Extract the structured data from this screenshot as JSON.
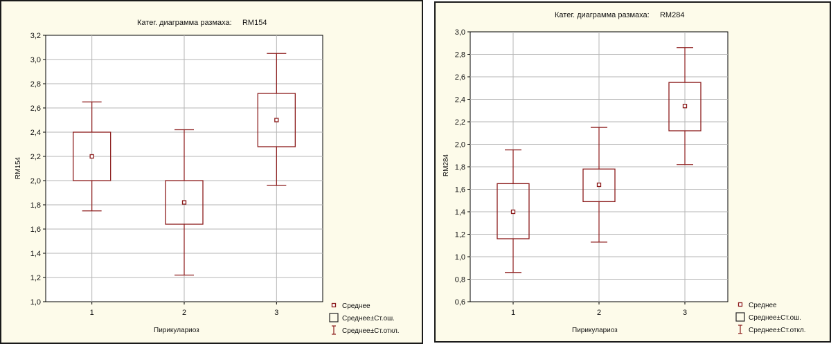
{
  "chart_data": [
    {
      "type": "box",
      "title": "Катег. диаграмма размаха:     RM154",
      "xlabel": "Пирикулариоз",
      "ylabel": "RM154",
      "categories": [
        "1",
        "2",
        "3"
      ],
      "ylim": [
        1.0,
        3.2
      ],
      "yticks": [
        1.0,
        1.2,
        1.4,
        1.6,
        1.8,
        2.0,
        2.2,
        2.4,
        2.6,
        2.8,
        3.0,
        3.2
      ],
      "ytick_labels": [
        "1,0",
        "1,2",
        "1,4",
        "1,6",
        "1,8",
        "2,0",
        "2,2",
        "2,4",
        "2,6",
        "2,8",
        "3,0",
        "3,2"
      ],
      "mean": [
        2.2,
        1.82,
        2.5
      ],
      "se_low": [
        2.0,
        1.64,
        2.28
      ],
      "se_high": [
        2.4,
        2.0,
        2.72
      ],
      "sd_low": [
        1.75,
        1.22,
        1.96
      ],
      "sd_high": [
        2.65,
        2.42,
        3.05
      ],
      "grid": true,
      "legend_position": "bottom-right",
      "legend": [
        "Среднее",
        "Среднее±Ст.ош.",
        "Среднее±Ст.откл."
      ],
      "color": "#8b1a1a"
    },
    {
      "type": "box",
      "title": "Катег. диаграмма размаха:     RM284",
      "xlabel": "Пирикулариоз",
      "ylabel": "RM284",
      "categories": [
        "1",
        "2",
        "3"
      ],
      "ylim": [
        0.6,
        3.0
      ],
      "yticks": [
        0.6,
        0.8,
        1.0,
        1.2,
        1.4,
        1.6,
        1.8,
        2.0,
        2.2,
        2.4,
        2.6,
        2.8,
        3.0
      ],
      "ytick_labels": [
        "0,6",
        "0,8",
        "1,0",
        "1,2",
        "1,4",
        "1,6",
        "1,8",
        "2,0",
        "2,2",
        "2,4",
        "2,6",
        "2,8",
        "3,0"
      ],
      "mean": [
        1.4,
        1.64,
        2.34
      ],
      "se_low": [
        1.16,
        1.49,
        2.12
      ],
      "se_high": [
        1.65,
        1.78,
        2.55
      ],
      "sd_low": [
        0.86,
        1.13,
        1.82
      ],
      "sd_high": [
        1.95,
        2.15,
        2.86
      ],
      "grid": true,
      "legend_position": "bottom-right",
      "legend": [
        "Среднее",
        "Среднее±Ст.ош.",
        "Среднее±Ст.откл."
      ],
      "color": "#8b1a1a"
    }
  ]
}
